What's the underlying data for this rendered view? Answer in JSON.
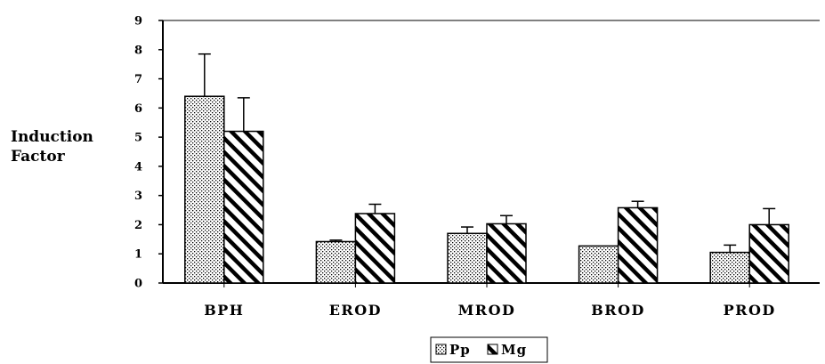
{
  "chart_data": {
    "type": "bar",
    "ylabel_lines": [
      "Induction",
      "Factor"
    ],
    "xlabel": "",
    "ylim": [
      0,
      9
    ],
    "yticks": [
      0,
      1,
      2,
      3,
      4,
      5,
      6,
      7,
      8,
      9
    ],
    "categories": [
      "BPH",
      "EROD",
      "MROD",
      "BROD",
      "PROD"
    ],
    "series": [
      {
        "name": "Pp",
        "pattern": "dots",
        "values": [
          6.4,
          1.42,
          1.7,
          1.27,
          1.05
        ],
        "errors": [
          1.45,
          0.05,
          0.22,
          0.0,
          0.25
        ]
      },
      {
        "name": "Mg",
        "pattern": "diagonal-stripes",
        "values": [
          5.2,
          2.38,
          2.03,
          2.58,
          2.0
        ],
        "errors": [
          1.15,
          0.32,
          0.28,
          0.22,
          0.55
        ]
      }
    ],
    "grid": false,
    "legend_position": "bottom-center",
    "colors": {
      "bar_stroke": "#000000",
      "axis": "#000000",
      "background": "#ffffff"
    }
  }
}
